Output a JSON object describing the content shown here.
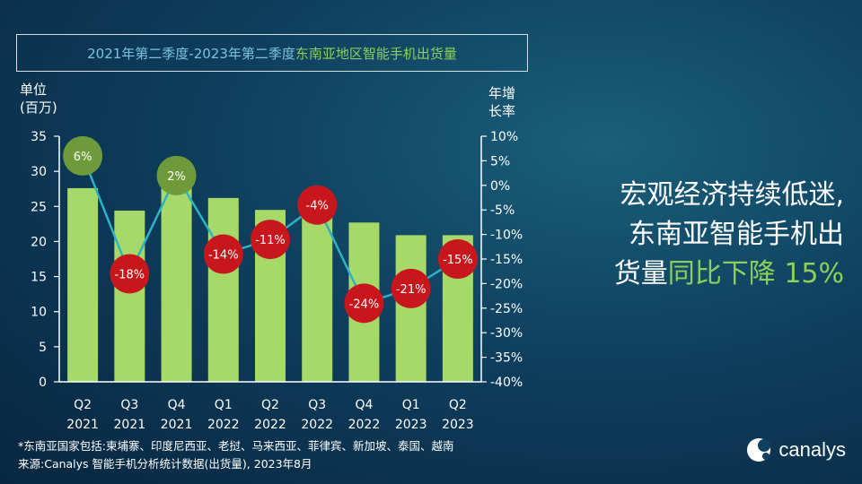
{
  "title": {
    "part1": "2021年第二季度-2023年第二季度",
    "part2": "东南亚地区智能手机出货量"
  },
  "left_axis_title": [
    "单位",
    "(百万)"
  ],
  "right_axis_title": [
    "年增",
    "长率"
  ],
  "headline": {
    "line1": "宏观经济持续低迷,",
    "line2": "东南亚智能手机出",
    "line3_prefix": "货量",
    "line3_accent": "同比下降 15%"
  },
  "footnote": {
    "line1": "*东南亚国家包括:柬埔寨、印度尼西亚、老挝、马来西亚、菲律宾、新加坡、泰国、越南",
    "line2": "来源:Canalys 智能手机分析统计数据(出货量), 2023年8月"
  },
  "logo": {
    "text": "canalys"
  },
  "colors": {
    "bar": "#a6d86a",
    "line": "#2cb3c5",
    "bubble_positive": "#6f9a3c",
    "bubble_negative": "#c8161d"
  },
  "chart_data": {
    "type": "bar",
    "categories": [
      [
        "Q2",
        "2021"
      ],
      [
        "Q3",
        "2021"
      ],
      [
        "Q4",
        "2021"
      ],
      [
        "Q1",
        "2022"
      ],
      [
        "Q2",
        "2022"
      ],
      [
        "Q3",
        "2022"
      ],
      [
        "Q4",
        "2022"
      ],
      [
        "Q1",
        "2023"
      ],
      [
        "Q2",
        "2023"
      ]
    ],
    "series": [
      {
        "type": "bar",
        "axis": "left",
        "values": [
          27.6,
          24.4,
          28.3,
          26.2,
          24.5,
          26.0,
          22.7,
          20.9,
          20.9
        ]
      },
      {
        "type": "line",
        "axis": "right",
        "values": [
          6,
          -18,
          2,
          -14,
          -11,
          -4,
          -24,
          -21,
          -15
        ],
        "labels": [
          "6%",
          "-18%",
          "2%",
          "-14%",
          "-11%",
          "-4%",
          "-24%",
          "-21%",
          "-15%"
        ]
      }
    ],
    "y_left": {
      "ticks": [
        "0",
        "5",
        "10",
        "15",
        "20",
        "25",
        "30",
        "35"
      ],
      "range": [
        0,
        35
      ]
    },
    "y_right": {
      "ticks": [
        "-40%",
        "-35%",
        "-30%",
        "-25%",
        "-20%",
        "-15%",
        "-10%",
        "-5%",
        "0%",
        "5%",
        "10%"
      ],
      "range": [
        -40,
        10
      ]
    },
    "grid": false
  }
}
